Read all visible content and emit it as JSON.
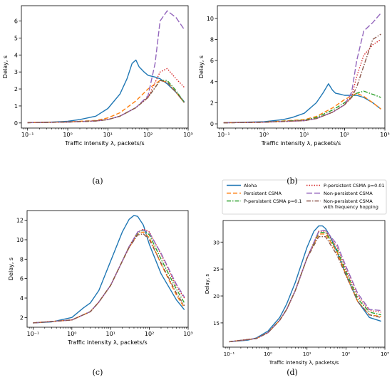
{
  "captions": [
    "(a)",
    "(b)",
    "(c)",
    "(d)"
  ],
  "legend": {
    "items": [
      {
        "label": "Aloha",
        "series": "aloha"
      },
      {
        "label": "Persistent CSMA",
        "series": "persistent"
      },
      {
        "label": "P-persistent CSMA p=0.1",
        "series": "pp01"
      },
      {
        "label": "P-persistent CSMA p=0.01",
        "series": "pp001"
      },
      {
        "label": "Non-persistent CSMA",
        "series": "nonpers"
      },
      {
        "label": "Non-persistent CSMA",
        "label2": "with frequency hopping",
        "series": "nonpers_fh"
      }
    ]
  },
  "series_styles": {
    "aloha": {
      "color": "#1f77b4",
      "dash": ""
    },
    "persistent": {
      "color": "#ff7f0e",
      "dash": "6,3"
    },
    "pp01": {
      "color": "#2ca02c",
      "dash": "6,2,1.5,2"
    },
    "pp001": {
      "color": "#d62728",
      "dash": "1.5,2"
    },
    "nonpers": {
      "color": "#9467bd",
      "dash": "8,3"
    },
    "nonpers_fh": {
      "color": "#8c564b",
      "dash": "6,2,1.5,2"
    }
  },
  "chart_data": [
    {
      "type": "line",
      "panel": "a",
      "xlabel": "Traffic intensity λ, packets/s",
      "ylabel": "Delay, s",
      "xscale": "log",
      "xlim": [
        0.07,
        1000
      ],
      "ylim": [
        -0.3,
        6.9
      ],
      "xticks": [
        {
          "v": 0.1,
          "label": "10⁻¹"
        },
        {
          "v": 1,
          "label": "10⁰"
        },
        {
          "v": 10,
          "label": "10¹"
        },
        {
          "v": 100,
          "label": "10²"
        },
        {
          "v": 1000,
          "label": "10³"
        }
      ],
      "yticks": [
        0,
        1,
        2,
        3,
        4,
        5,
        6
      ],
      "series": [
        {
          "key": "aloha",
          "x": [
            0.1,
            0.3,
            1,
            2,
            5,
            10,
            20,
            30,
            40,
            50,
            60,
            80,
            100,
            150,
            200,
            300,
            500,
            800
          ],
          "y": [
            0.02,
            0.04,
            0.1,
            0.2,
            0.4,
            0.85,
            1.7,
            2.6,
            3.5,
            3.7,
            3.3,
            3.0,
            2.8,
            2.7,
            2.6,
            2.3,
            1.8,
            1.25
          ]
        },
        {
          "key": "persistent",
          "x": [
            0.1,
            1,
            5,
            10,
            20,
            50,
            100,
            200,
            300,
            500,
            800
          ],
          "y": [
            0.02,
            0.06,
            0.15,
            0.3,
            0.6,
            1.3,
            2.0,
            2.5,
            2.4,
            1.8,
            1.2
          ]
        },
        {
          "key": "pp01",
          "x": [
            0.1,
            1,
            5,
            10,
            20,
            50,
            100,
            200,
            300,
            500,
            800
          ],
          "y": [
            0.02,
            0.05,
            0.12,
            0.2,
            0.4,
            0.9,
            1.5,
            2.5,
            2.5,
            1.9,
            1.2
          ]
        },
        {
          "key": "pp001",
          "x": [
            0.1,
            1,
            5,
            10,
            20,
            50,
            100,
            200,
            300,
            500,
            800
          ],
          "y": [
            0.02,
            0.05,
            0.12,
            0.2,
            0.4,
            0.9,
            1.5,
            3.0,
            3.2,
            2.6,
            2.1
          ]
        },
        {
          "key": "nonpers",
          "x": [
            0.1,
            1,
            5,
            10,
            20,
            50,
            100,
            150,
            200,
            300,
            500,
            800
          ],
          "y": [
            0.02,
            0.05,
            0.12,
            0.2,
            0.4,
            0.9,
            1.6,
            3.5,
            6.0,
            6.6,
            6.2,
            5.5
          ]
        },
        {
          "key": "nonpers_fh",
          "x": [
            0.1,
            1,
            5,
            10,
            20,
            50,
            100,
            200,
            300,
            500,
            800
          ],
          "y": [
            0.02,
            0.05,
            0.12,
            0.2,
            0.4,
            0.9,
            1.5,
            2.5,
            2.4,
            1.8,
            1.2
          ]
        }
      ]
    },
    {
      "type": "line",
      "panel": "b",
      "xlabel": "Traffic intensity λ, packets/s",
      "ylabel": "Delay, s",
      "xscale": "log",
      "xlim": [
        0.07,
        1000
      ],
      "ylim": [
        -0.4,
        11.2
      ],
      "xticks": [
        {
          "v": 0.1,
          "label": "10⁻¹"
        },
        {
          "v": 1,
          "label": "10⁰"
        },
        {
          "v": 10,
          "label": "10¹"
        },
        {
          "v": 100,
          "label": "10²"
        },
        {
          "v": 1000,
          "label": "10³"
        }
      ],
      "yticks": [
        0,
        2,
        4,
        6,
        8,
        10
      ],
      "series": [
        {
          "key": "aloha",
          "x": [
            0.1,
            1,
            3,
            5,
            10,
            20,
            30,
            40,
            50,
            60,
            80,
            100,
            200,
            300,
            500,
            800
          ],
          "y": [
            0.1,
            0.2,
            0.4,
            0.6,
            1.0,
            2.0,
            3.0,
            3.8,
            3.2,
            2.9,
            2.8,
            2.7,
            2.7,
            2.5,
            2.0,
            1.4
          ]
        },
        {
          "key": "persistent",
          "x": [
            0.1,
            1,
            10,
            20,
            50,
            100,
            200,
            300,
            500,
            800
          ],
          "y": [
            0.1,
            0.15,
            0.4,
            0.7,
            1.5,
            2.3,
            2.9,
            2.6,
            2.0,
            1.4
          ]
        },
        {
          "key": "pp01",
          "x": [
            0.1,
            1,
            10,
            20,
            50,
            100,
            200,
            300,
            500,
            800
          ],
          "y": [
            0.1,
            0.15,
            0.35,
            0.6,
            1.3,
            2.0,
            2.9,
            3.1,
            2.8,
            2.5
          ]
        },
        {
          "key": "pp001",
          "x": [
            0.1,
            1,
            10,
            20,
            50,
            100,
            150,
            200,
            300,
            500,
            800
          ],
          "y": [
            0.1,
            0.15,
            0.3,
            0.5,
            1.1,
            1.8,
            2.6,
            4.5,
            6.5,
            7.5,
            8.0
          ]
        },
        {
          "key": "nonpers",
          "x": [
            0.1,
            1,
            10,
            20,
            50,
            100,
            150,
            200,
            300,
            500,
            800
          ],
          "y": [
            0.1,
            0.15,
            0.3,
            0.5,
            1.1,
            1.8,
            3.0,
            6.0,
            8.8,
            9.6,
            10.5
          ]
        },
        {
          "key": "nonpers_fh",
          "x": [
            0.1,
            1,
            10,
            20,
            50,
            100,
            150,
            200,
            300,
            500,
            800
          ],
          "y": [
            0.1,
            0.15,
            0.3,
            0.5,
            1.1,
            1.8,
            2.5,
            3.5,
            5.5,
            8.0,
            8.5
          ]
        }
      ]
    },
    {
      "type": "line",
      "panel": "c",
      "xlabel": "Traffic intensity λ, packets/s",
      "ylabel": "Delay, s",
      "xscale": "log",
      "xlim": [
        0.07,
        1000
      ],
      "ylim": [
        1.0,
        13.0
      ],
      "xticks": [
        {
          "v": 0.1,
          "label": "10⁻¹"
        },
        {
          "v": 1,
          "label": "10⁰"
        },
        {
          "v": 10,
          "label": "10¹"
        },
        {
          "v": 100,
          "label": "10²"
        },
        {
          "v": 1000,
          "label": "10³"
        }
      ],
      "yticks": [
        2,
        4,
        6,
        8,
        10,
        12
      ],
      "series": [
        {
          "key": "aloha",
          "x": [
            0.1,
            0.3,
            1,
            2,
            3,
            5,
            10,
            20,
            30,
            40,
            50,
            70,
            100,
            200,
            500,
            800
          ],
          "y": [
            1.45,
            1.55,
            2.0,
            3.0,
            3.5,
            4.8,
            7.8,
            10.8,
            12.1,
            12.5,
            12.4,
            11.5,
            9.5,
            6.5,
            3.8,
            2.8
          ]
        },
        {
          "key": "persistent",
          "x": [
            0.1,
            1,
            3,
            5,
            10,
            20,
            30,
            50,
            70,
            100,
            200,
            500,
            800
          ],
          "y": [
            1.45,
            1.75,
            2.6,
            3.6,
            5.3,
            7.8,
            9.2,
            10.6,
            10.8,
            10.2,
            7.5,
            4.3,
            3.0
          ]
        },
        {
          "key": "pp01",
          "x": [
            0.1,
            1,
            3,
            5,
            10,
            20,
            30,
            50,
            70,
            100,
            200,
            500,
            800
          ],
          "y": [
            1.45,
            1.75,
            2.6,
            3.6,
            5.3,
            7.8,
            9.3,
            10.7,
            11.0,
            10.5,
            8.0,
            4.9,
            3.5
          ]
        },
        {
          "key": "pp001",
          "x": [
            0.1,
            1,
            3,
            5,
            10,
            20,
            30,
            50,
            70,
            100,
            200,
            500,
            800
          ],
          "y": [
            1.45,
            1.75,
            2.6,
            3.6,
            5.3,
            7.8,
            9.3,
            10.8,
            11.1,
            10.8,
            8.5,
            5.2,
            4.0
          ]
        },
        {
          "key": "nonpers",
          "x": [
            0.1,
            1,
            3,
            5,
            10,
            20,
            30,
            50,
            70,
            100,
            200,
            500,
            800
          ],
          "y": [
            1.45,
            1.75,
            2.6,
            3.6,
            5.3,
            7.8,
            9.3,
            10.8,
            11.0,
            10.7,
            8.6,
            5.4,
            4.1
          ]
        },
        {
          "key": "nonpers_fh",
          "x": [
            0.1,
            1,
            3,
            5,
            10,
            20,
            30,
            50,
            70,
            100,
            200,
            500,
            800
          ],
          "y": [
            1.45,
            1.75,
            2.6,
            3.6,
            5.3,
            7.8,
            9.2,
            10.5,
            10.6,
            10.0,
            7.6,
            4.5,
            3.2
          ]
        }
      ]
    },
    {
      "type": "line",
      "panel": "d",
      "xlabel": "Traffic intensity λ, packets/s",
      "ylabel": "Delay, s",
      "xscale": "log",
      "xlim": [
        0.07,
        1000
      ],
      "ylim": [
        10.5,
        34.0
      ],
      "xticks": [
        {
          "v": 0.1,
          "label": "10⁻¹"
        },
        {
          "v": 1,
          "label": "10⁰"
        },
        {
          "v": 10,
          "label": "10¹"
        },
        {
          "v": 100,
          "label": "10²"
        },
        {
          "v": 1000,
          "label": "10³"
        }
      ],
      "yticks": [
        15,
        20,
        25,
        30
      ],
      "series": [
        {
          "key": "aloha",
          "x": [
            0.1,
            0.3,
            0.5,
            1,
            2,
            3,
            5,
            10,
            15,
            20,
            25,
            30,
            40,
            60,
            100,
            200,
            400,
            800
          ],
          "y": [
            11.5,
            11.8,
            12.2,
            13.5,
            16.0,
            18.5,
            22.5,
            29.0,
            32.0,
            33.0,
            33.0,
            32.5,
            31.0,
            28.0,
            24.0,
            19.0,
            16.0,
            15.3
          ]
        },
        {
          "key": "persistent",
          "x": [
            0.1,
            0.5,
            1,
            2,
            3,
            5,
            10,
            20,
            30,
            60,
            100,
            200,
            400,
            800
          ],
          "y": [
            11.5,
            12.1,
            13.2,
            15.5,
            17.5,
            21.0,
            27.0,
            31.5,
            31.5,
            28.0,
            24.0,
            19.0,
            16.5,
            16.2
          ]
        },
        {
          "key": "pp01",
          "x": [
            0.1,
            0.5,
            1,
            2,
            3,
            5,
            10,
            20,
            30,
            60,
            100,
            200,
            400,
            800
          ],
          "y": [
            11.5,
            12.1,
            13.2,
            15.5,
            17.5,
            21.0,
            27.0,
            31.8,
            31.8,
            28.5,
            24.5,
            19.5,
            17.0,
            16.5
          ]
        },
        {
          "key": "pp001",
          "x": [
            0.1,
            0.5,
            1,
            2,
            3,
            5,
            10,
            20,
            30,
            60,
            100,
            200,
            400,
            800
          ],
          "y": [
            11.5,
            12.1,
            13.2,
            15.5,
            17.5,
            21.0,
            27.0,
            32.0,
            32.0,
            29.0,
            25.0,
            20.0,
            17.3,
            17.0
          ]
        },
        {
          "key": "nonpers",
          "x": [
            0.1,
            0.5,
            1,
            2,
            3,
            5,
            10,
            20,
            30,
            60,
            100,
            200,
            400,
            800
          ],
          "y": [
            11.5,
            12.1,
            13.2,
            15.5,
            17.5,
            21.0,
            27.0,
            32.0,
            32.2,
            29.5,
            25.5,
            20.5,
            17.5,
            17.3
          ]
        },
        {
          "key": "nonpers_fh",
          "x": [
            0.1,
            0.5,
            1,
            2,
            3,
            5,
            10,
            20,
            30,
            60,
            100,
            200,
            400,
            800
          ],
          "y": [
            11.5,
            12.1,
            13.2,
            15.5,
            17.5,
            21.0,
            27.0,
            31.0,
            31.0,
            27.5,
            23.8,
            19.0,
            16.5,
            16.0
          ]
        }
      ]
    }
  ]
}
